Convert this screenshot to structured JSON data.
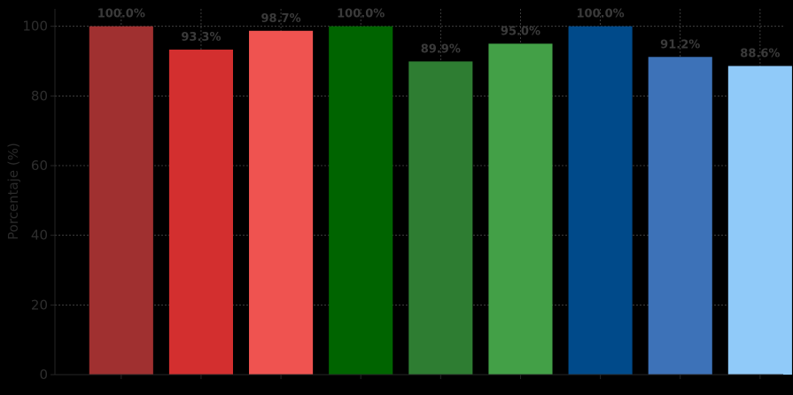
{
  "chart_data": {
    "type": "bar",
    "title": "",
    "xlabel": "",
    "ylabel": "Porcentaje (%)",
    "ylim": [
      0,
      105
    ],
    "yticks": [
      0,
      20,
      40,
      60,
      80,
      100
    ],
    "grid": true,
    "categories": [
      "",
      "",
      "",
      "",
      "",
      "",
      "",
      "",
      ""
    ],
    "values": [
      100.0,
      93.3,
      98.7,
      100.0,
      89.9,
      95.0,
      100.0,
      91.2,
      88.6
    ],
    "data_labels": [
      "100.0%",
      "93.3%",
      "98.7%",
      "100.0%",
      "89.9%",
      "95.0%",
      "100.0%",
      "91.2%",
      "88.6%"
    ],
    "colors": [
      "#a03030",
      "#d32f2f",
      "#ef5350",
      "#006400",
      "#2e7d32",
      "#43a047",
      "#004a8a",
      "#3d72b8",
      "#90caf9"
    ]
  }
}
